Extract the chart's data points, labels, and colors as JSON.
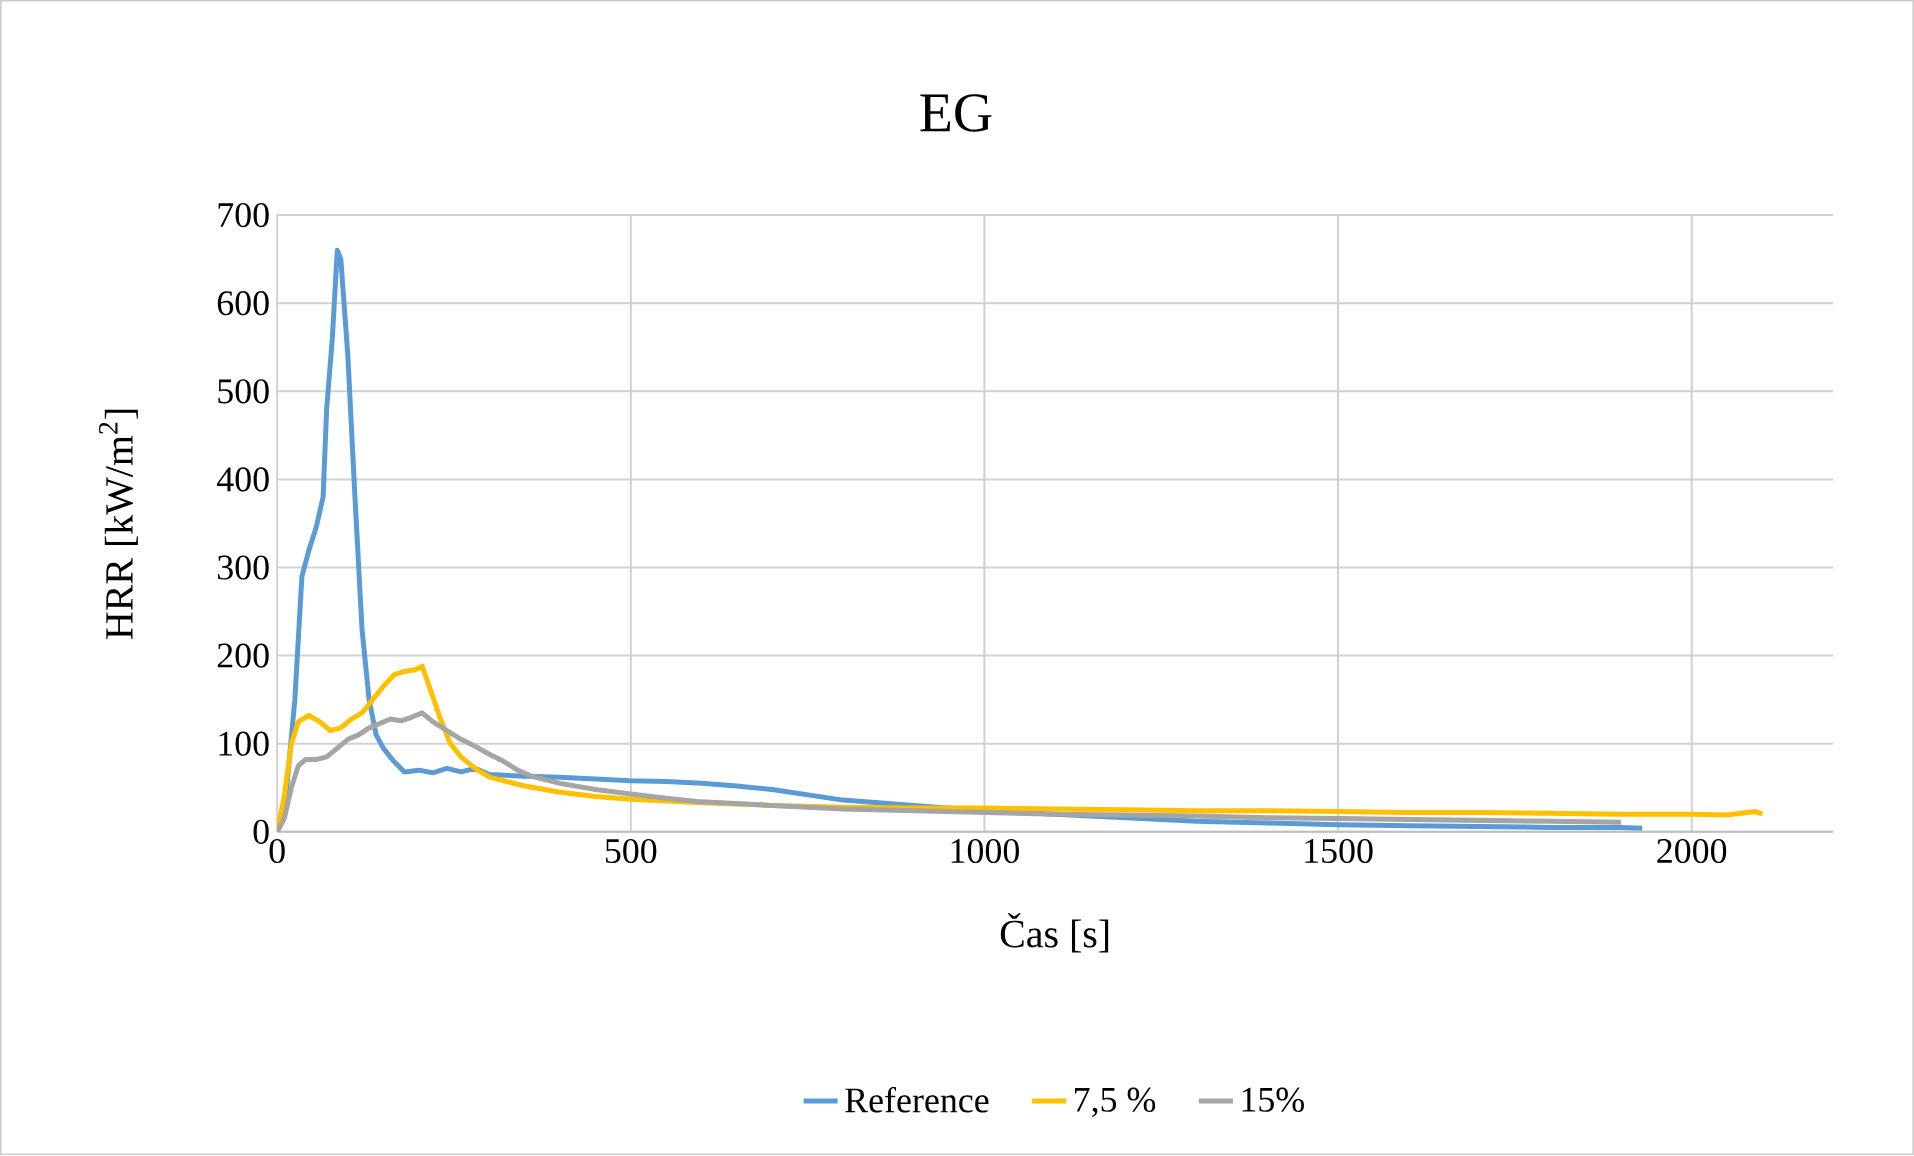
{
  "chart_data": {
    "type": "line",
    "title": "EG",
    "xlabel": "Čas [s]",
    "ylabel": "HRR [kW/m$^{2}$]",
    "xlim": [
      0,
      2200
    ],
    "xticks": [
      0,
      500,
      1000,
      1500,
      2000
    ],
    "ylim": [
      0,
      700
    ],
    "yticks": [
      0,
      100,
      200,
      300,
      400,
      500,
      600,
      700
    ],
    "grid": true,
    "legend": "bottom",
    "series": [
      {
        "name": "Reference",
        "color": "#5b9bd5",
        "x": [
          0,
          10,
          25,
          35,
          45,
          55,
          65,
          70,
          78,
          85,
          90,
          100,
          110,
          120,
          130,
          140,
          150,
          165,
          180,
          200,
          220,
          240,
          260,
          280,
          300,
          350,
          400,
          450,
          500,
          550,
          600,
          650,
          700,
          750,
          800,
          850,
          900,
          950,
          1000,
          1100,
          1200,
          1300,
          1400,
          1500,
          1600,
          1700,
          1800,
          1900,
          1930
        ],
        "values": [
          0,
          20,
          150,
          290,
          320,
          345,
          380,
          480,
          560,
          660,
          650,
          540,
          380,
          230,
          150,
          110,
          95,
          80,
          68,
          70,
          67,
          72,
          68,
          72,
          65,
          63,
          62,
          60,
          58,
          57,
          55,
          52,
          48,
          42,
          36,
          33,
          30,
          27,
          24,
          20,
          16,
          12,
          10,
          8,
          7,
          6,
          5,
          5,
          4
        ]
      },
      {
        "name": "7,5 %",
        "color": "#ffc000",
        "x": [
          0,
          10,
          20,
          30,
          45,
          60,
          75,
          90,
          105,
          120,
          135,
          150,
          165,
          180,
          195,
          205,
          215,
          230,
          245,
          260,
          280,
          300,
          350,
          400,
          450,
          500,
          600,
          700,
          800,
          900,
          1000,
          1100,
          1200,
          1300,
          1400,
          1500,
          1600,
          1700,
          1800,
          1900,
          2000,
          2050,
          2090,
          2100
        ],
        "values": [
          0,
          40,
          100,
          125,
          132,
          125,
          115,
          118,
          128,
          135,
          150,
          165,
          178,
          182,
          184,
          188,
          165,
          130,
          100,
          85,
          72,
          62,
          52,
          45,
          40,
          37,
          33,
          30,
          28,
          27,
          27,
          26,
          25,
          24,
          24,
          23,
          22,
          22,
          21,
          20,
          20,
          19,
          23,
          20
        ]
      },
      {
        "name": "15%",
        "color": "#a5a5a5",
        "x": [
          0,
          10,
          20,
          30,
          40,
          55,
          70,
          85,
          100,
          115,
          130,
          145,
          160,
          175,
          190,
          205,
          220,
          240,
          260,
          280,
          300,
          320,
          340,
          360,
          400,
          450,
          500,
          550,
          600,
          700,
          800,
          900,
          1000,
          1100,
          1200,
          1300,
          1400,
          1500,
          1600,
          1700,
          1800,
          1900
        ],
        "values": [
          0,
          15,
          50,
          75,
          82,
          82,
          85,
          95,
          105,
          110,
          118,
          123,
          128,
          126,
          130,
          135,
          125,
          115,
          105,
          97,
          88,
          80,
          70,
          63,
          55,
          48,
          43,
          38,
          34,
          30,
          26,
          24,
          22,
          20,
          19,
          18,
          16,
          15,
          14,
          13,
          12,
          11
        ]
      }
    ]
  }
}
